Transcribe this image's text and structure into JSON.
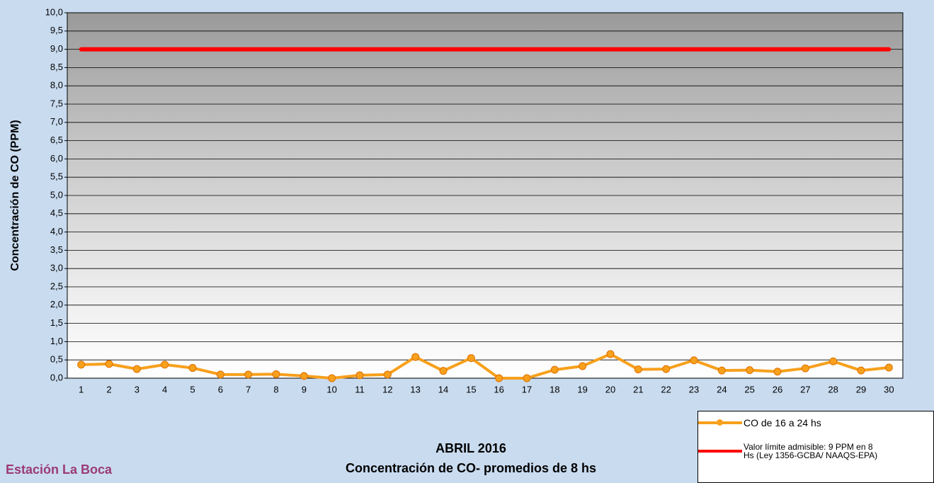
{
  "chart_data": {
    "type": "line",
    "title": "ABRIL 2016",
    "subtitle": "Concentración de CO- promedios de 8 hs",
    "station": "Estación La Boca",
    "y_label": "Concentración de CO (PPM)",
    "categories": [
      "1",
      "2",
      "3",
      "4",
      "5",
      "6",
      "7",
      "8",
      "9",
      "10",
      "11",
      "12",
      "13",
      "14",
      "15",
      "16",
      "17",
      "18",
      "19",
      "20",
      "21",
      "22",
      "23",
      "24",
      "25",
      "26",
      "27",
      "28",
      "29",
      "30"
    ],
    "series": [
      {
        "name": "CO de 16 a 24 hs",
        "color": "#f7a01c",
        "markers": true,
        "values": [
          0.37,
          0.39,
          0.25,
          0.37,
          0.28,
          0.1,
          0.1,
          0.11,
          0.06,
          0.0,
          0.08,
          0.1,
          0.58,
          0.2,
          0.55,
          0.0,
          0.0,
          0.23,
          0.33,
          0.66,
          0.24,
          0.25,
          0.49,
          0.21,
          0.22,
          0.18,
          0.27,
          0.46,
          0.21,
          0.29
        ]
      },
      {
        "name": "Valor límite admisible: 9 PPM en 8 Hs (Ley 1356-GCBA/ NAAQS-EPA)",
        "color": "#ff0000",
        "markers": false,
        "values": [
          9,
          9,
          9,
          9,
          9,
          9,
          9,
          9,
          9,
          9,
          9,
          9,
          9,
          9,
          9,
          9,
          9,
          9,
          9,
          9,
          9,
          9,
          9,
          9,
          9,
          9,
          9,
          9,
          9,
          9
        ]
      }
    ],
    "ylim": [
      0,
      10
    ],
    "yticks": [
      {
        "value": 0,
        "label": "0,0"
      },
      {
        "value": 0.5,
        "label": "0,5"
      },
      {
        "value": 1,
        "label": "1,0"
      },
      {
        "value": 1.5,
        "label": "1,5"
      },
      {
        "value": 2,
        "label": "2,0"
      },
      {
        "value": 2.5,
        "label": "2,5"
      },
      {
        "value": 3,
        "label": "3,0"
      },
      {
        "value": 3.5,
        "label": "3,5"
      },
      {
        "value": 4,
        "label": "4,0"
      },
      {
        "value": 4.5,
        "label": "4,5"
      },
      {
        "value": 5,
        "label": "5,0"
      },
      {
        "value": 5.5,
        "label": "5,5"
      },
      {
        "value": 6,
        "label": "6,0"
      },
      {
        "value": 6.5,
        "label": "6,5"
      },
      {
        "value": 7,
        "label": "7,0"
      },
      {
        "value": 7.5,
        "label": "7,5"
      },
      {
        "value": 8,
        "label": "8,0"
      },
      {
        "value": 8.5,
        "label": "8,5"
      },
      {
        "value": 9,
        "label": "9,0"
      },
      {
        "value": 9.5,
        "label": "9,5"
      },
      {
        "value": 10,
        "label": "10,0"
      }
    ],
    "grid": true,
    "legend": "bottom-right"
  }
}
